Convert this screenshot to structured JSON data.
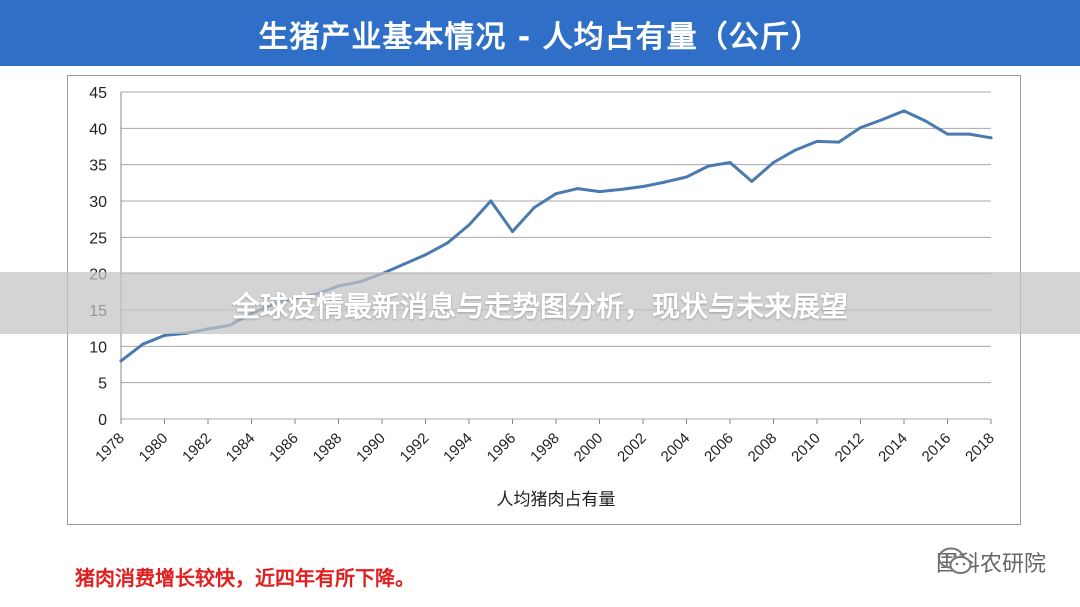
{
  "header": {
    "title": "生猪产业基本情况 - 人均占有量（公斤）"
  },
  "overlay": {
    "text": "全球疫情最新消息与走势图分析，现状与未来展望"
  },
  "note": "猪肉消费增长较快，近四年有所下降。",
  "brand": {
    "name": "国科农研院",
    "icon": "wechat-icon"
  },
  "colors": {
    "header_bg": "#2f6fc7",
    "line": "#4a7ab0",
    "note": "#e02020"
  },
  "chart_data": {
    "type": "line",
    "title": "",
    "xlabel": "人均猪肉占有量",
    "ylabel": "",
    "ylim": [
      0,
      45
    ],
    "xlim": [
      1978,
      2018
    ],
    "yticks": [
      "0",
      "5",
      "10",
      "15",
      "20",
      "25",
      "30",
      "35",
      "40",
      "45"
    ],
    "xticks": [
      "1978",
      "1980",
      "1982",
      "1984",
      "1986",
      "1988",
      "1990",
      "1992",
      "1994",
      "1996",
      "1998",
      "2000",
      "2002",
      "2004",
      "2006",
      "2008",
      "2010",
      "2012",
      "2014",
      "2016",
      "2018"
    ],
    "grid": true,
    "legend": "none",
    "x": [
      1978,
      1979,
      1980,
      1981,
      1982,
      1983,
      1984,
      1985,
      1986,
      1987,
      1988,
      1989,
      1990,
      1991,
      1992,
      1993,
      1994,
      1995,
      1996,
      1997,
      1998,
      1999,
      2000,
      2001,
      2002,
      2003,
      2004,
      2005,
      2006,
      2007,
      2008,
      2009,
      2010,
      2011,
      2012,
      2013,
      2014,
      2015,
      2016,
      2017,
      2018
    ],
    "values": [
      8.0,
      10.3,
      11.5,
      11.8,
      12.4,
      12.9,
      14.5,
      15.8,
      16.6,
      17.2,
      18.3,
      18.9,
      20.0,
      21.3,
      22.6,
      24.2,
      26.7,
      30.0,
      25.8,
      29.1,
      31.0,
      31.7,
      31.3,
      31.6,
      32.0,
      32.6,
      33.3,
      34.8,
      35.3,
      32.7,
      35.3,
      37.0,
      38.2,
      38.1,
      40.1,
      41.2,
      42.4,
      41.0,
      39.2,
      39.2,
      38.7
    ]
  }
}
